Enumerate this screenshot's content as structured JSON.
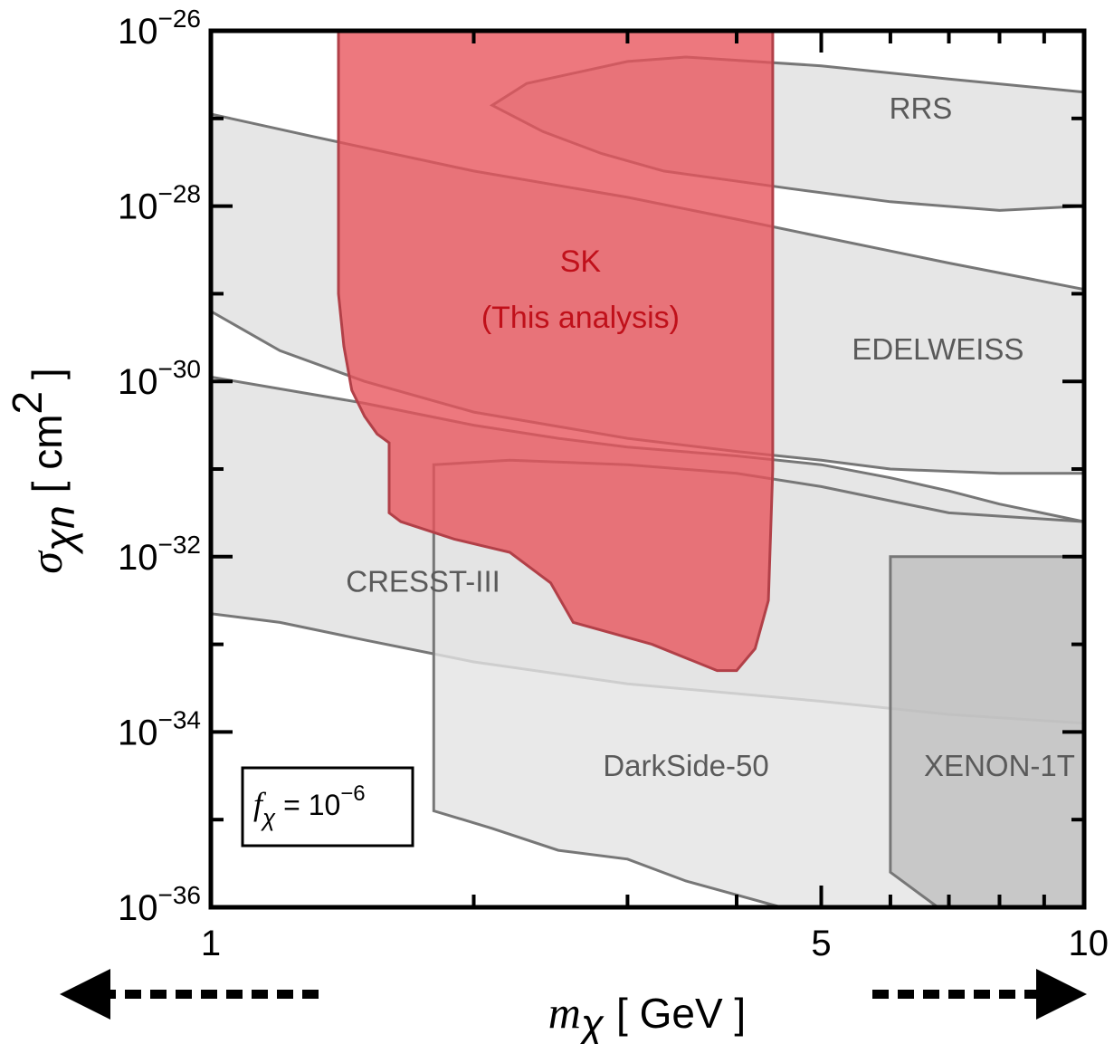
{
  "chart_data": {
    "type": "area",
    "x_scale": "log",
    "y_scale": "log",
    "xlim": [
      1,
      10
    ],
    "ylim": [
      1e-36,
      1e-26
    ],
    "x_tick_labels": [
      {
        "value": 1,
        "label": "1"
      },
      {
        "value": 5,
        "label": "5"
      },
      {
        "value": 10,
        "label": "10"
      }
    ],
    "y_tick_labels": [
      {
        "exp": -26,
        "base": "10",
        "sup": "−26"
      },
      {
        "exp": -28,
        "base": "10",
        "sup": "−28"
      },
      {
        "exp": -30,
        "base": "10",
        "sup": "−30"
      },
      {
        "exp": -32,
        "base": "10",
        "sup": "−32"
      },
      {
        "exp": -34,
        "base": "10",
        "sup": "−34"
      },
      {
        "exp": -36,
        "base": "10",
        "sup": "−36"
      }
    ],
    "xlabel": {
      "symbol": "m",
      "sub": "χ",
      "unit": "[ GeV ]"
    },
    "ylabel": {
      "symbol": "σ",
      "sub": "χn",
      "unit_open": "[ cm",
      "unit_sup": "2",
      "unit_close": " ]"
    },
    "inset": {
      "symbol": "f",
      "sub": "χ",
      "rest": " = 10",
      "sup": "−6"
    },
    "grid": false,
    "colors": {
      "excluded": "#e3e3e3",
      "excluded_dark": "#bcbcbc",
      "boundary": "#777777",
      "sk_fill": "#e8525a",
      "sk_edge": "#b24048"
    },
    "series": [
      {
        "name": "RRS",
        "label_pos": [
          6.5,
          -27.0
        ],
        "polygon": [
          [
            2.1,
            -26.85
          ],
          [
            2.3,
            -26.6
          ],
          [
            3.0,
            -26.35
          ],
          [
            3.5,
            -26.3
          ],
          [
            5.0,
            -26.4
          ],
          [
            7.0,
            -26.55
          ],
          [
            10,
            -26.7
          ],
          [
            10,
            -28.0
          ],
          [
            8.0,
            -28.05
          ],
          [
            6.0,
            -27.95
          ],
          [
            4.6,
            -27.8
          ],
          [
            3.3,
            -27.6
          ],
          [
            2.8,
            -27.4
          ],
          [
            2.4,
            -27.15
          ],
          [
            2.1,
            -26.85
          ]
        ]
      },
      {
        "name": "EDELWEISS",
        "label_pos": [
          6.8,
          -29.75
        ],
        "polygon": [
          [
            1,
            -26.95
          ],
          [
            1.3,
            -27.2
          ],
          [
            2,
            -27.6
          ],
          [
            3,
            -27.9
          ],
          [
            4,
            -28.15
          ],
          [
            5,
            -28.35
          ],
          [
            7,
            -28.65
          ],
          [
            10,
            -28.95
          ],
          [
            10,
            -31.05
          ],
          [
            8,
            -31.05
          ],
          [
            6,
            -31.0
          ],
          [
            5,
            -30.9
          ],
          [
            4,
            -30.8
          ],
          [
            3,
            -30.65
          ],
          [
            2,
            -30.35
          ],
          [
            1.5,
            -30.0
          ],
          [
            1.2,
            -29.65
          ],
          [
            1,
            -29.2
          ]
        ]
      },
      {
        "name": "CRESST-III",
        "label_pos": [
          1.75,
          -32.4
        ],
        "polygon": [
          [
            1,
            -29.95
          ],
          [
            1.5,
            -30.25
          ],
          [
            2,
            -30.5
          ],
          [
            2.5,
            -30.65
          ],
          [
            3,
            -30.75
          ],
          [
            4,
            -30.85
          ],
          [
            5,
            -30.95
          ],
          [
            6,
            -31.1
          ],
          [
            7,
            -31.25
          ],
          [
            8,
            -31.4
          ],
          [
            10,
            -31.6
          ],
          [
            10,
            -33.9
          ],
          [
            7,
            -33.8
          ],
          [
            5,
            -33.65
          ],
          [
            3,
            -33.45
          ],
          [
            2,
            -33.2
          ],
          [
            1.5,
            -32.95
          ],
          [
            1.2,
            -32.75
          ],
          [
            1,
            -32.65
          ]
        ]
      },
      {
        "name": "DarkSide-50",
        "label_pos": [
          3.5,
          -34.5
        ],
        "polygon": [
          [
            1.8,
            -30.95
          ],
          [
            2.2,
            -30.9
          ],
          [
            3,
            -30.95
          ],
          [
            4,
            -31.05
          ],
          [
            5,
            -31.2
          ],
          [
            7,
            -31.5
          ],
          [
            10,
            -31.6
          ],
          [
            10,
            -36.0
          ],
          [
            4.5,
            -36.0
          ],
          [
            3.5,
            -35.7
          ],
          [
            3,
            -35.45
          ],
          [
            2.5,
            -35.35
          ],
          [
            2.1,
            -35.1
          ],
          [
            1.8,
            -34.9
          ]
        ]
      },
      {
        "name": "XENON-1T",
        "label_pos": [
          8.0,
          -34.5
        ],
        "polygon": [
          [
            6.0,
            -32.0
          ],
          [
            10,
            -32.0
          ],
          [
            10,
            -36.0
          ],
          [
            6.8,
            -36.0
          ],
          [
            6.0,
            -35.6
          ]
        ]
      },
      {
        "name": "SK",
        "label_pos": [
          2.65,
          -28.75
        ],
        "polygon": [
          [
            1.4,
            -26.0
          ],
          [
            4.4,
            -26.0
          ],
          [
            4.4,
            -31.0
          ],
          [
            4.35,
            -32.5
          ],
          [
            4.2,
            -33.05
          ],
          [
            4.0,
            -33.3
          ],
          [
            3.8,
            -33.3
          ],
          [
            3.2,
            -33.0
          ],
          [
            2.6,
            -32.75
          ],
          [
            2.45,
            -32.3
          ],
          [
            2.2,
            -31.95
          ],
          [
            1.9,
            -31.8
          ],
          [
            1.65,
            -31.6
          ],
          [
            1.6,
            -31.5
          ],
          [
            1.6,
            -30.7
          ],
          [
            1.55,
            -30.6
          ],
          [
            1.5,
            -30.4
          ],
          [
            1.45,
            -30.1
          ],
          [
            1.42,
            -29.6
          ],
          [
            1.4,
            -29.0
          ]
        ]
      }
    ],
    "sk_subtitle": "(This analysis)"
  }
}
